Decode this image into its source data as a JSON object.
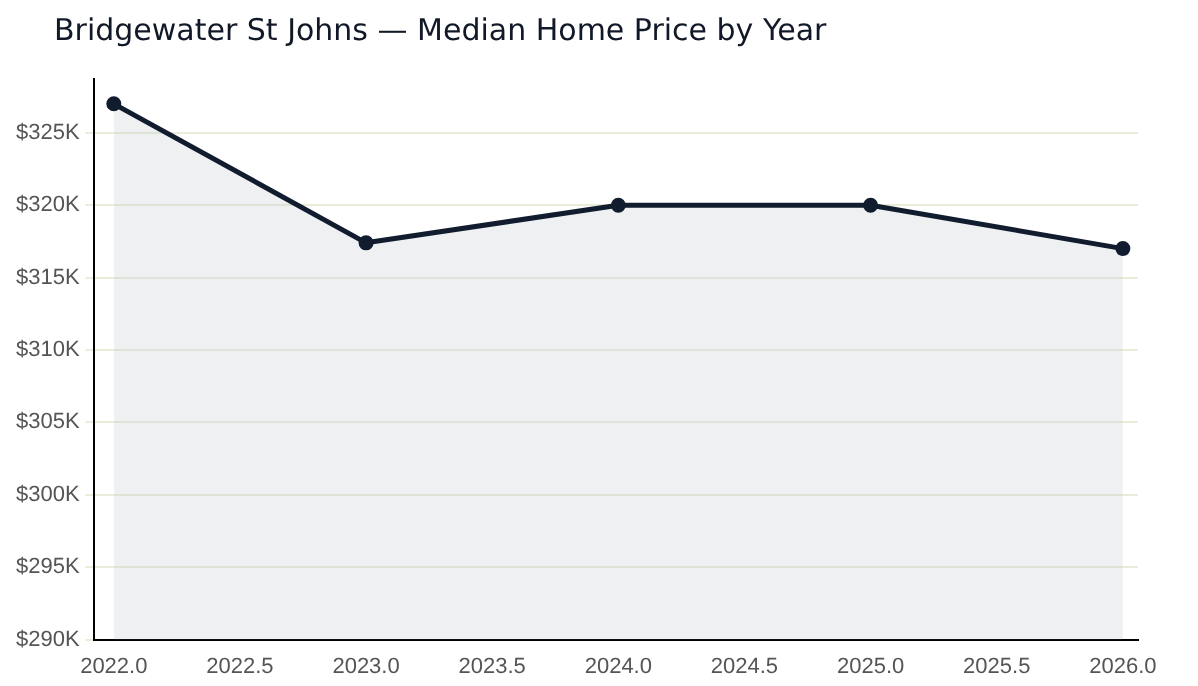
{
  "chart_data": {
    "type": "area",
    "title": "Bridgewater St Johns — Median Home Price by Year",
    "x": [
      2022,
      2023,
      2024,
      2025,
      2026
    ],
    "series": [
      {
        "color": "#111c2e",
        "values": [
          327000,
          317400,
          320000,
          320000,
          317000
        ]
      }
    ],
    "xlim": [
      2021.92,
      2026.06
    ],
    "xticks": [
      {
        "value": 2022,
        "label": "2022.0"
      },
      {
        "value": 2022.5,
        "label": "2022.5"
      },
      {
        "value": 2023,
        "label": "2023.0"
      },
      {
        "value": 2023.5,
        "label": "2023.5"
      },
      {
        "value": 2024,
        "label": "2024.0"
      },
      {
        "value": 2024.5,
        "label": "2024.5"
      },
      {
        "value": 2025,
        "label": "2025.0"
      },
      {
        "value": 2025.5,
        "label": "2025.5"
      },
      {
        "value": 2026,
        "label": "2026.0"
      }
    ],
    "ylim": [
      290000,
      328700
    ],
    "yticks": [
      {
        "value": 290000,
        "label": "$290K"
      },
      {
        "value": 295000,
        "label": "$295K"
      },
      {
        "value": 300000,
        "label": "$300K"
      },
      {
        "value": 305000,
        "label": "$305K"
      },
      {
        "value": 310000,
        "label": "$310K"
      },
      {
        "value": 315000,
        "label": "$315K"
      },
      {
        "value": 320000,
        "label": "$320K"
      },
      {
        "value": 325000,
        "label": "$325K"
      }
    ],
    "grid": "y",
    "legend": false,
    "marker": "circle",
    "line_style": "solid"
  }
}
